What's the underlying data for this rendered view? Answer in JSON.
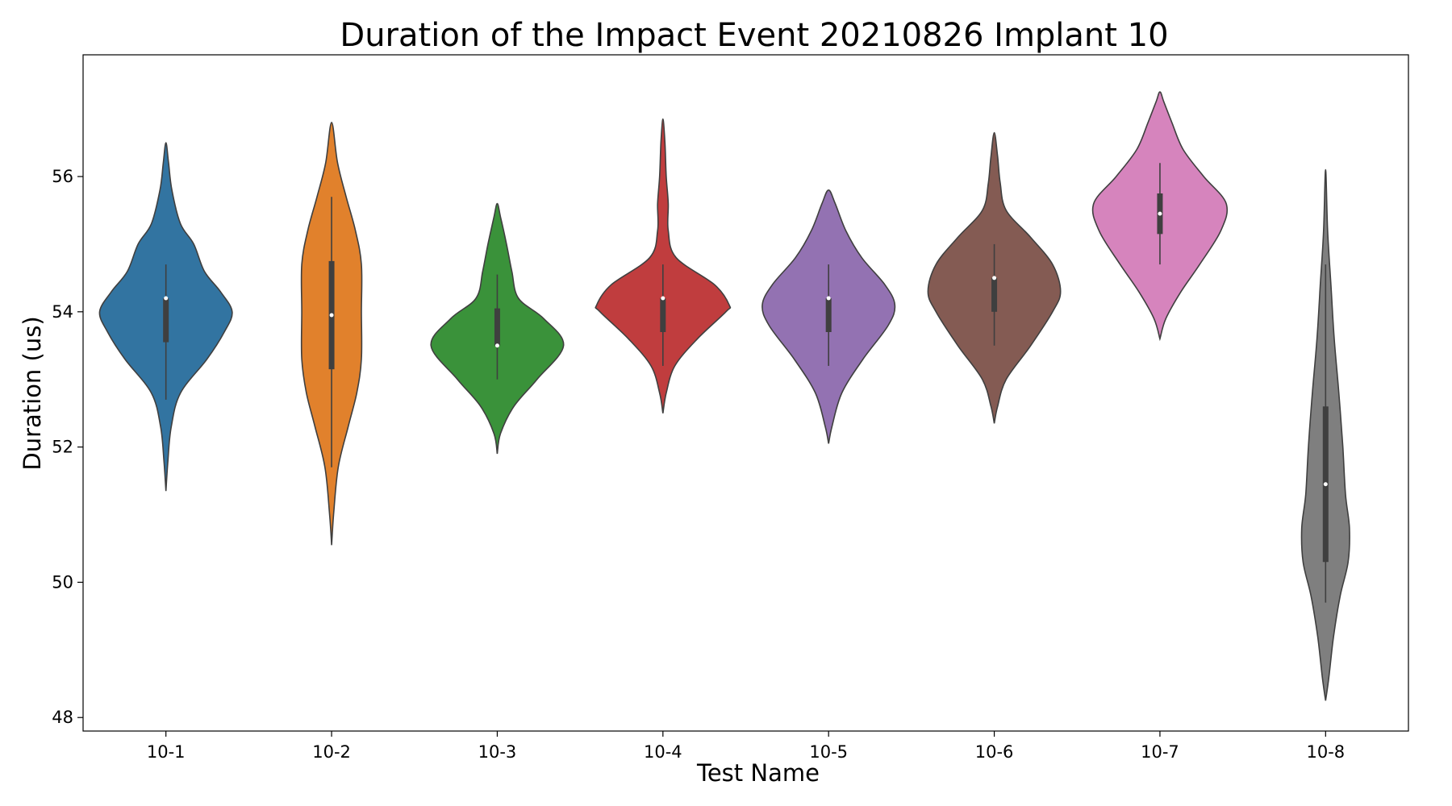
{
  "chart_data": {
    "type": "violin",
    "title": "Duration of the Impact Event 20210826 Implant 10",
    "xlabel": "Test Name",
    "ylabel": "Duration (us)",
    "ylim": [
      47.8,
      57.8
    ],
    "yticks": [
      48,
      50,
      52,
      54,
      56
    ],
    "grid": false,
    "categories": [
      "10-1",
      "10-2",
      "10-3",
      "10-4",
      "10-5",
      "10-6",
      "10-7",
      "10-8"
    ],
    "series": [
      {
        "category": "10-1",
        "color": "#3274a1",
        "median": 54.2,
        "q1": 53.55,
        "q3": 54.2,
        "whisker_low": 52.7,
        "whisker_high": 54.7,
        "density": [
          [
            51.35,
            0
          ],
          [
            51.8,
            0.03
          ],
          [
            52.3,
            0.08
          ],
          [
            52.8,
            0.22
          ],
          [
            53.3,
            0.62
          ],
          [
            53.7,
            0.88
          ],
          [
            54.0,
            1.0
          ],
          [
            54.3,
            0.82
          ],
          [
            54.6,
            0.58
          ],
          [
            55.0,
            0.42
          ],
          [
            55.3,
            0.22
          ],
          [
            55.8,
            0.09
          ],
          [
            56.2,
            0.04
          ],
          [
            56.5,
            0
          ]
        ]
      },
      {
        "category": "10-2",
        "color": "#e1812c",
        "median": 53.95,
        "q1": 53.15,
        "q3": 54.75,
        "whisker_low": 51.7,
        "whisker_high": 55.7,
        "density": [
          [
            50.55,
            0
          ],
          [
            51.0,
            0.03
          ],
          [
            51.7,
            0.1
          ],
          [
            52.3,
            0.25
          ],
          [
            52.8,
            0.38
          ],
          [
            53.3,
            0.45
          ],
          [
            54.0,
            0.45
          ],
          [
            54.7,
            0.45
          ],
          [
            55.2,
            0.36
          ],
          [
            55.7,
            0.22
          ],
          [
            56.2,
            0.09
          ],
          [
            56.8,
            0
          ]
        ]
      },
      {
        "category": "10-3",
        "color": "#3a923a",
        "median": 53.5,
        "q1": 53.5,
        "q3": 54.05,
        "whisker_low": 53.0,
        "whisker_high": 54.55,
        "density": [
          [
            51.9,
            0
          ],
          [
            52.2,
            0.05
          ],
          [
            52.6,
            0.25
          ],
          [
            53.0,
            0.6
          ],
          [
            53.5,
            1.0
          ],
          [
            53.9,
            0.7
          ],
          [
            54.2,
            0.32
          ],
          [
            54.6,
            0.22
          ],
          [
            55.0,
            0.14
          ],
          [
            55.4,
            0.05
          ],
          [
            55.6,
            0
          ]
        ]
      },
      {
        "category": "10-4",
        "color": "#c03d3e",
        "median": 54.2,
        "q1": 53.7,
        "q3": 54.2,
        "whisker_low": 53.2,
        "whisker_high": 54.7,
        "density": [
          [
            52.5,
            0
          ],
          [
            52.8,
            0.05
          ],
          [
            53.2,
            0.18
          ],
          [
            53.6,
            0.52
          ],
          [
            54.0,
            0.95
          ],
          [
            54.1,
            1.0
          ],
          [
            54.4,
            0.78
          ],
          [
            54.8,
            0.2
          ],
          [
            55.2,
            0.08
          ],
          [
            55.6,
            0.08
          ],
          [
            56.0,
            0.05
          ],
          [
            56.5,
            0.03
          ],
          [
            56.85,
            0
          ]
        ]
      },
      {
        "category": "10-5",
        "color": "#9372b2",
        "median": 54.2,
        "q1": 53.7,
        "q3": 54.2,
        "whisker_low": 53.2,
        "whisker_high": 54.7,
        "density": [
          [
            52.05,
            0
          ],
          [
            52.3,
            0.05
          ],
          [
            52.8,
            0.2
          ],
          [
            53.3,
            0.52
          ],
          [
            53.8,
            0.9
          ],
          [
            54.1,
            1.0
          ],
          [
            54.4,
            0.85
          ],
          [
            54.8,
            0.5
          ],
          [
            55.2,
            0.26
          ],
          [
            55.6,
            0.1
          ],
          [
            55.8,
            0
          ]
        ]
      },
      {
        "category": "10-6",
        "color": "#845b53",
        "median": 54.5,
        "q1": 54.0,
        "q3": 54.5,
        "whisker_low": 53.5,
        "whisker_high": 55.0,
        "density": [
          [
            52.35,
            0
          ],
          [
            52.6,
            0.05
          ],
          [
            53.0,
            0.18
          ],
          [
            53.5,
            0.55
          ],
          [
            54.0,
            0.88
          ],
          [
            54.3,
            1.0
          ],
          [
            54.7,
            0.88
          ],
          [
            55.1,
            0.55
          ],
          [
            55.5,
            0.18
          ],
          [
            55.9,
            0.09
          ],
          [
            56.3,
            0.05
          ],
          [
            56.65,
            0
          ]
        ]
      },
      {
        "category": "10-7",
        "color": "#d684bd",
        "median": 55.45,
        "q1": 55.15,
        "q3": 55.75,
        "whisker_low": 54.7,
        "whisker_high": 56.2,
        "density": [
          [
            53.6,
            0
          ],
          [
            53.9,
            0.09
          ],
          [
            54.3,
            0.32
          ],
          [
            54.7,
            0.6
          ],
          [
            55.2,
            0.92
          ],
          [
            55.6,
            1.0
          ],
          [
            56.0,
            0.66
          ],
          [
            56.4,
            0.35
          ],
          [
            56.8,
            0.18
          ],
          [
            57.1,
            0.06
          ],
          [
            57.25,
            0
          ]
        ]
      },
      {
        "category": "10-8",
        "color": "#7f7f7f",
        "median": 51.45,
        "q1": 50.3,
        "q3": 52.6,
        "whisker_low": 49.7,
        "whisker_high": 54.7,
        "density": [
          [
            48.25,
            0
          ],
          [
            48.6,
            0.05
          ],
          [
            49.2,
            0.12
          ],
          [
            49.8,
            0.22
          ],
          [
            50.3,
            0.34
          ],
          [
            50.8,
            0.36
          ],
          [
            51.3,
            0.3
          ],
          [
            52.0,
            0.26
          ],
          [
            52.8,
            0.2
          ],
          [
            53.6,
            0.13
          ],
          [
            54.4,
            0.08
          ],
          [
            55.2,
            0.03
          ],
          [
            56.1,
            0
          ]
        ]
      }
    ]
  }
}
